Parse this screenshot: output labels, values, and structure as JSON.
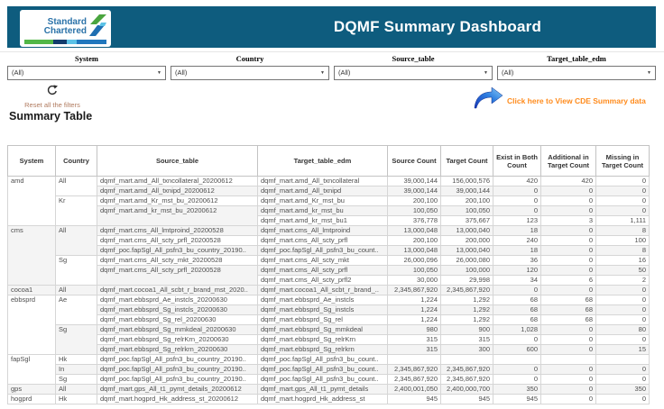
{
  "header": {
    "title": "DQMF Summary Dashboard",
    "logo": {
      "line1": "Standard",
      "line2": "Chartered"
    }
  },
  "filters": [
    {
      "label": "System",
      "value": "(All)"
    },
    {
      "label": "Country",
      "value": "(All)"
    },
    {
      "label": "Source_table",
      "value": "(All)"
    },
    {
      "label": "Target_table_edm",
      "value": "(All)"
    }
  ],
  "actions": {
    "reset_label": "Reset all the filters",
    "cde_link": "Click here to View CDE Summary data"
  },
  "section_title": "Summary Table",
  "colors": {
    "banner": "#0e5c7e",
    "cde_link": "#ff8b1c",
    "reset_link": "#b07a5e",
    "logo_blue": "#2a72a8",
    "logo_green": "#52b747",
    "row_stripe": "#f4f4f4"
  },
  "icons": [
    "sc-emblem-icon",
    "reset-refresh-icon",
    "blue-arrow-icon",
    "dropdown-caret-icon"
  ],
  "table": {
    "headers": [
      "System",
      "Country",
      "Source_table",
      "Target_table_edm",
      "Source Count",
      "Target Count",
      "Exist in Both Count",
      "Additional in Target Count",
      "Missing in Target Count"
    ],
    "col_names": [
      "cell-system",
      "cell-country",
      "cell-source-table",
      "cell-target-table-edm",
      "cell-source-count",
      "cell-target-count",
      "cell-exist-both-count",
      "cell-additional-target-count",
      "cell-missing-target-count"
    ],
    "rows": [
      [
        {
          "t": "amd",
          "rs": 5
        },
        {
          "t": "All",
          "rs": 2
        },
        {
          "t": "dqmf_mart.amd_All_txncollateral_20200612"
        },
        {
          "t": "dqmf_mart.amd_All_txncollateral"
        },
        {
          "t": "39,000,144"
        },
        {
          "t": "156,000,576"
        },
        {
          "t": "420"
        },
        {
          "t": "420"
        },
        {
          "t": "0"
        }
      ],
      [
        null,
        null,
        {
          "t": "dqmf_mart.amd_All_txnipd_20200612"
        },
        {
          "t": "dqmf_mart.amd_All_txnipd"
        },
        {
          "t": "39,000,144"
        },
        {
          "t": "39,000,144"
        },
        {
          "t": "0"
        },
        {
          "t": "0"
        },
        {
          "t": "0"
        }
      ],
      [
        null,
        {
          "t": "Kr",
          "rs": 3
        },
        {
          "t": "dqmf_mart.amd_Kr_mst_bu_20200612"
        },
        {
          "t": "dqmf_mart.amd_Kr_mst_bu"
        },
        {
          "t": "200,100"
        },
        {
          "t": "200,100"
        },
        {
          "t": "0"
        },
        {
          "t": "0"
        },
        {
          "t": "0"
        }
      ],
      [
        null,
        null,
        {
          "t": "dqmf_mart.amd_kr_mst_bu_20200612",
          "rs": 2
        },
        {
          "t": "dqmf_mart.amd_kr_mst_bu"
        },
        {
          "t": "100,050"
        },
        {
          "t": "100,050"
        },
        {
          "t": "0"
        },
        {
          "t": "0"
        },
        {
          "t": "0"
        }
      ],
      [
        null,
        null,
        null,
        {
          "t": "dqmf_mart.amd_kr_mst_bu1"
        },
        {
          "t": "376,778"
        },
        {
          "t": "375,667"
        },
        {
          "t": "123"
        },
        {
          "t": "3"
        },
        {
          "t": "1,111"
        }
      ],
      [
        {
          "t": "cms",
          "rs": 6
        },
        {
          "t": "All",
          "rs": 3
        },
        {
          "t": "dqmf_mart.cms_All_lmtproind_20200528"
        },
        {
          "t": "dqmf_mart.cms_All_lmtproind"
        },
        {
          "t": "13,000,048"
        },
        {
          "t": "13,000,040"
        },
        {
          "t": "18"
        },
        {
          "t": "0"
        },
        {
          "t": "8"
        }
      ],
      [
        null,
        null,
        {
          "t": "dqmf_mart.cms_All_scty_prfl_20200528"
        },
        {
          "t": "dqmf_mart.cms_All_scty_prfl"
        },
        {
          "t": "200,100"
        },
        {
          "t": "200,000"
        },
        {
          "t": "240"
        },
        {
          "t": "0"
        },
        {
          "t": "100"
        }
      ],
      [
        null,
        null,
        {
          "t": "dqmf_poc.fapSgl_All_psfn3_bu_country_20190.."
        },
        {
          "t": "dqmf_poc.fapSgl_All_psfn3_bu_count.."
        },
        {
          "t": "13,000,048"
        },
        {
          "t": "13,000,040"
        },
        {
          "t": "18"
        },
        {
          "t": "0"
        },
        {
          "t": "8"
        }
      ],
      [
        null,
        {
          "t": "Sg",
          "rs": 3
        },
        {
          "t": "dqmf_mart.cms_All_scty_mkt_20200528"
        },
        {
          "t": "dqmf_mart.cms_All_scty_mkt"
        },
        {
          "t": "26,000,096"
        },
        {
          "t": "26,000,080"
        },
        {
          "t": "36"
        },
        {
          "t": "0"
        },
        {
          "t": "16"
        }
      ],
      [
        null,
        null,
        {
          "t": "dqmf_mart.cms_All_scty_prfl_20200528",
          "rs": 2
        },
        {
          "t": "dqmf_mart.cms_All_scty_prfl"
        },
        {
          "t": "100,050"
        },
        {
          "t": "100,000"
        },
        {
          "t": "120"
        },
        {
          "t": "0"
        },
        {
          "t": "50"
        }
      ],
      [
        null,
        null,
        null,
        {
          "t": "dqmf_mart.cms_All_scty_prfl2"
        },
        {
          "t": "30,000"
        },
        {
          "t": "29,998"
        },
        {
          "t": "34"
        },
        {
          "t": "6"
        },
        {
          "t": "2"
        }
      ],
      [
        {
          "t": "cocoa1"
        },
        {
          "t": "All"
        },
        {
          "t": "dqmf_mart.cocoa1_All_scbt_r_brand_mst_2020.."
        },
        {
          "t": "dqmf_mart.cocoa1_All_scbt_r_brand_.."
        },
        {
          "t": "2,345,867,920"
        },
        {
          "t": "2,345,867,920"
        },
        {
          "t": "0"
        },
        {
          "t": "0"
        },
        {
          "t": "0"
        }
      ],
      [
        {
          "t": "ebbsprd",
          "rs": 6
        },
        {
          "t": "Ae",
          "rs": 3
        },
        {
          "t": "dqmf_mart.ebbsprd_Ae_instcls_20200630"
        },
        {
          "t": "dqmf_mart.ebbsprd_Ae_instcls"
        },
        {
          "t": "1,224"
        },
        {
          "t": "1,292"
        },
        {
          "t": "68"
        },
        {
          "t": "68"
        },
        {
          "t": "0"
        }
      ],
      [
        null,
        null,
        {
          "t": "dqmf_mart.ebbsprd_Sg_instcls_20200630"
        },
        {
          "t": "dqmf_mart.ebbsprd_Sg_instcls"
        },
        {
          "t": "1,224"
        },
        {
          "t": "1,292"
        },
        {
          "t": "68"
        },
        {
          "t": "68"
        },
        {
          "t": "0"
        }
      ],
      [
        null,
        null,
        {
          "t": "dqmf_mart.ebbsprd_Sg_rel_20200630"
        },
        {
          "t": "dqmf_mart.ebbsprd_Sg_rel"
        },
        {
          "t": "1,224"
        },
        {
          "t": "1,292"
        },
        {
          "t": "68"
        },
        {
          "t": "68"
        },
        {
          "t": "0"
        }
      ],
      [
        null,
        {
          "t": "Sg",
          "rs": 3
        },
        {
          "t": "dqmf_mart.ebbsprd_Sg_mmkdeal_20200630"
        },
        {
          "t": "dqmf_mart.ebbsprd_Sg_mmkdeal"
        },
        {
          "t": "980"
        },
        {
          "t": "900"
        },
        {
          "t": "1,028"
        },
        {
          "t": "0"
        },
        {
          "t": "80"
        }
      ],
      [
        null,
        null,
        {
          "t": "dqmf_mart.ebbsprd_Sg_relrKrn_20200630"
        },
        {
          "t": "dqmf_mart.ebbsprd_Sg_relrKrn"
        },
        {
          "t": "315"
        },
        {
          "t": "315"
        },
        {
          "t": "0"
        },
        {
          "t": "0"
        },
        {
          "t": "0"
        }
      ],
      [
        null,
        null,
        {
          "t": "dqmf_mart.ebbsprd_Sg_relrkrn_20200630"
        },
        {
          "t": "dqmf_mart.ebbsprd_Sg_relrkrn"
        },
        {
          "t": "315"
        },
        {
          "t": "300"
        },
        {
          "t": "600"
        },
        {
          "t": "0"
        },
        {
          "t": "15"
        }
      ],
      [
        {
          "t": "fapSgl",
          "rs": 3
        },
        {
          "t": "Hk"
        },
        {
          "t": "dqmf_poc.fapSgl_All_psfn3_bu_country_20190.."
        },
        {
          "t": "dqmf_poc.fapSgl_All_psfn3_bu_count.."
        },
        {
          "t": ""
        },
        {
          "t": ""
        },
        {
          "t": ""
        },
        {
          "t": ""
        },
        {
          "t": ""
        }
      ],
      [
        null,
        {
          "t": "In"
        },
        {
          "t": "dqmf_poc.fapSgl_All_psfn3_bu_country_20190.."
        },
        {
          "t": "dqmf_poc.fapSgl_All_psfn3_bu_count.."
        },
        {
          "t": "2,345,867,920"
        },
        {
          "t": "2,345,867,920"
        },
        {
          "t": "0"
        },
        {
          "t": "0"
        },
        {
          "t": "0"
        }
      ],
      [
        null,
        {
          "t": "Sg"
        },
        {
          "t": "dqmf_poc.fapSgl_All_psfn3_bu_country_20190.."
        },
        {
          "t": "dqmf_poc.fapSgl_All_psfn3_bu_count.."
        },
        {
          "t": "2,345,867,920"
        },
        {
          "t": "2,345,867,920"
        },
        {
          "t": "0"
        },
        {
          "t": "0"
        },
        {
          "t": "0"
        }
      ],
      [
        {
          "t": "gps"
        },
        {
          "t": "All"
        },
        {
          "t": "dqmf_mart.gps_All_t1_pymt_details_20200612"
        },
        {
          "t": "dqmf_mart.gps_All_t1_pymt_details"
        },
        {
          "t": "2,400,001,050"
        },
        {
          "t": "2,400,000,700"
        },
        {
          "t": "350"
        },
        {
          "t": "0"
        },
        {
          "t": "350"
        }
      ],
      [
        {
          "t": "hogprd"
        },
        {
          "t": "Hk"
        },
        {
          "t": "dqmf_mart.hogprd_Hk_address_st_20200612"
        },
        {
          "t": "dqmf_mart.hogprd_Hk_address_st"
        },
        {
          "t": "945"
        },
        {
          "t": "945"
        },
        {
          "t": "945"
        },
        {
          "t": "0"
        },
        {
          "t": "0"
        }
      ]
    ]
  }
}
